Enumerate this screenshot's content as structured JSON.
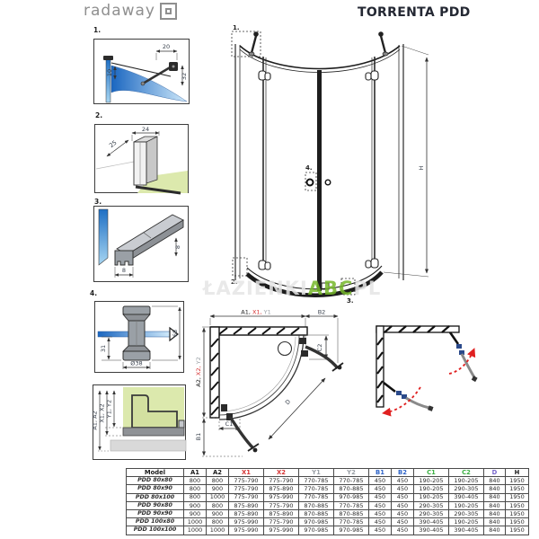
{
  "header": {
    "logo": "radaway",
    "title": "TORRENTA PDD"
  },
  "details": {
    "d1": {
      "label": "1.",
      "dim_top": "20",
      "dim_left": "10",
      "dim_right": "32"
    },
    "d2": {
      "label": "2.",
      "dim_top": "24",
      "dim_diag": "25"
    },
    "d3": {
      "label": "3.",
      "dim_bottom": "8",
      "dim_right": "8"
    },
    "d4": {
      "label": "4.",
      "dim_left": "31",
      "dim_bottom": "Ø38",
      "dim_right": "68"
    },
    "d5": {
      "dim_a": "A1, A2",
      "dim_x": "X1, X2",
      "dim_y": "Y1, Y2"
    }
  },
  "main_view": {
    "callout_1": "1.",
    "callout_2": "2.",
    "callout_3": "3.",
    "callout_4": "4.",
    "height_label": "H"
  },
  "watermark": {
    "part1": "ŁAZIENKI",
    "part2": "ABC",
    "part3": "PL"
  },
  "plan_view": {
    "top_a1": "A1,",
    "top_x1": "X1,",
    "top_y1": "Y1",
    "top_b2": "B2",
    "left_a2": "A2,",
    "left_x2": "X2,",
    "left_y2": "Y2",
    "left_b1": "B1",
    "c1": "C1",
    "c2": "C2",
    "d": "D"
  },
  "colors": {
    "red": "#d63535",
    "blue": "#2e64c8",
    "green": "#3cb043",
    "purple": "#7766cc",
    "gray": "#9aa0a6",
    "black": "#1a1a1a",
    "watermark_green": "#76b82a",
    "floor_green": "#dce9ad",
    "glass_blue": "#2a7fd0"
  },
  "table": {
    "columns": [
      {
        "label": "Model",
        "color": "#1a1a1a"
      },
      {
        "label": "A1",
        "color": "#1a1a1a"
      },
      {
        "label": "A2",
        "color": "#1a1a1a"
      },
      {
        "label": "X1",
        "color": "#d63535"
      },
      {
        "label": "X2",
        "color": "#d63535"
      },
      {
        "label": "Y1",
        "color": "#9aa0a6"
      },
      {
        "label": "Y2",
        "color": "#9aa0a6"
      },
      {
        "label": "B1",
        "color": "#2e64c8"
      },
      {
        "label": "B2",
        "color": "#2e64c8"
      },
      {
        "label": "C1",
        "color": "#3cb043"
      },
      {
        "label": "C2",
        "color": "#3cb043"
      },
      {
        "label": "D",
        "color": "#7766cc"
      },
      {
        "label": "H",
        "color": "#1a1a1a"
      }
    ],
    "rows": [
      [
        "PDD 80x80",
        "800",
        "800",
        "775-790",
        "775-790",
        "770-785",
        "770-785",
        "450",
        "450",
        "190-205",
        "190-205",
        "840",
        "1950"
      ],
      [
        "PDD 80x90",
        "800",
        "900",
        "775-790",
        "875-890",
        "770-785",
        "870-885",
        "450",
        "450",
        "190-205",
        "290-305",
        "840",
        "1950"
      ],
      [
        "PDD 80x100",
        "800",
        "1000",
        "775-790",
        "975-990",
        "770-785",
        "970-985",
        "450",
        "450",
        "190-205",
        "390-405",
        "840",
        "1950"
      ],
      [
        "PDD 90x80",
        "900",
        "800",
        "875-890",
        "775-790",
        "870-885",
        "770-785",
        "450",
        "450",
        "290-305",
        "190-205",
        "840",
        "1950"
      ],
      [
        "PDD 90x90",
        "900",
        "900",
        "875-890",
        "875-890",
        "870-885",
        "870-885",
        "450",
        "450",
        "290-305",
        "290-305",
        "840",
        "1950"
      ],
      [
        "PDD 100x80",
        "1000",
        "800",
        "975-990",
        "775-790",
        "970-985",
        "770-785",
        "450",
        "450",
        "390-405",
        "190-205",
        "840",
        "1950"
      ],
      [
        "PDD 100x100",
        "1000",
        "1000",
        "975-990",
        "975-990",
        "970-985",
        "970-985",
        "450",
        "450",
        "390-405",
        "390-405",
        "840",
        "1950"
      ]
    ]
  }
}
